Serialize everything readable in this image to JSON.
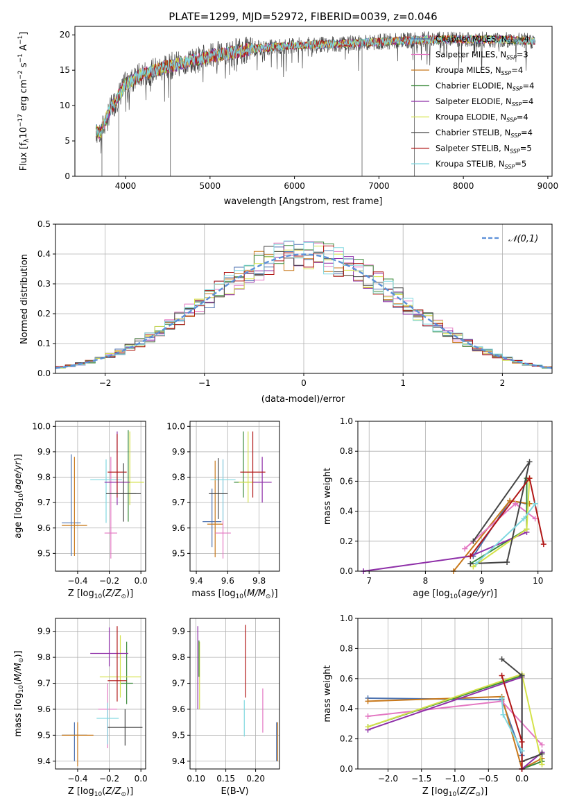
{
  "chart_data": [
    {
      "type": "line",
      "title": "PLATE=1299, MJD=52972, FIBERID=0039, z=0.046",
      "xlabel": "wavelength [Angstrom, rest frame]",
      "ylabel": "Flux [f_λ 10^-17 erg cm^-2 s^-1 A^-1]",
      "xlim": [
        3400,
        9050
      ],
      "ylim": [
        0,
        21.2
      ],
      "xticks": [
        "4000",
        "5000",
        "6000",
        "7000",
        "8000",
        "9000"
      ],
      "yticks": [
        "0",
        "5",
        "10",
        "15",
        "20"
      ],
      "grid": false,
      "legend_position": "right",
      "series": [
        {
          "name": "Chabrier MILES, N_SSP=4",
          "color": "#4c72b0"
        },
        {
          "name": "Salpeter MILES, N_SSP=3",
          "color": "#e377c2"
        },
        {
          "name": "Kroupa MILES, N_SSP=4",
          "color": "#c8781a"
        },
        {
          "name": "Chabrier ELODIE, N_SSP=4",
          "color": "#3a8a3a"
        },
        {
          "name": "Salpeter ELODIE, N_SSP=4",
          "color": "#8e2fa8"
        },
        {
          "name": "Kroupa ELODIE, N_SSP=4",
          "color": "#d4e24a"
        },
        {
          "name": "Chabrier STELIB, N_SSP=4",
          "color": "#444444"
        },
        {
          "name": "Salpeter STELIB, N_SSP=5",
          "color": "#b01515"
        },
        {
          "name": "Kroupa STELIB, N_SSP=5",
          "color": "#7fd8e0"
        }
      ],
      "continuum": {
        "x": [
          3650,
          3700,
          3800,
          3900,
          4000,
          4200,
          4500,
          5000,
          5500,
          6000,
          6500,
          7000,
          7500,
          8000,
          8500,
          8850
        ],
        "y": [
          6.5,
          6.0,
          9.0,
          11.0,
          13.0,
          14.5,
          15.5,
          17.0,
          18.0,
          18.5,
          18.7,
          19.0,
          19.3,
          19.4,
          19.3,
          19.1
        ]
      },
      "dips": [
        {
          "x": 3720,
          "y": 0
        },
        {
          "x": 3920,
          "y": 0
        },
        {
          "x": 4530,
          "y": 0
        },
        {
          "x": 6800,
          "y": 0
        },
        {
          "x": 7420,
          "y": 0
        }
      ]
    },
    {
      "type": "line",
      "xlabel": "(data-model)/error",
      "ylabel": "Normed distribution",
      "xlim": [
        -2.5,
        2.5
      ],
      "ylim": [
        0,
        0.5
      ],
      "xticks": [
        "-2",
        "-1",
        "0",
        "1",
        "2"
      ],
      "yticks": [
        "0.0",
        "0.1",
        "0.2",
        "0.3",
        "0.4",
        "0.5"
      ],
      "grid": true,
      "legend_position": "top-right",
      "reference_curve": {
        "name": "𝒩(0,1)",
        "color": "#5b8fd8",
        "mean": 0,
        "sigma": 1
      },
      "histograms": {
        "bin_width": 0.1,
        "range": [
          -2.5,
          2.5
        ],
        "profile": {
          "mean": 0,
          "sigma": 1.0
        },
        "colors": [
          "#4c72b0",
          "#e377c2",
          "#c8781a",
          "#3a8a3a",
          "#8e2fa8",
          "#d4e24a",
          "#444444",
          "#b01515",
          "#7fd8e0"
        ]
      }
    },
    {
      "type": "scatter",
      "xlabel": "Z [log10(Z/Z☉)]",
      "ylabel": "age [log10(age/yr)]",
      "xlim": [
        -0.54,
        0.03
      ],
      "ylim": [
        9.43,
        10.02
      ],
      "xticks": [
        "-0.4",
        "-0.2",
        "0.0"
      ],
      "yticks": [
        "9.5",
        "9.6",
        "9.7",
        "9.8",
        "9.9",
        "10.0"
      ],
      "grid": true,
      "error_bars": [
        {
          "x": -0.44,
          "xerr": 0.06,
          "y": 9.62,
          "yerr": [
            0.13,
            0.27
          ],
          "color": "#4c72b0"
        },
        {
          "x": -0.42,
          "xerr": 0.08,
          "y": 9.61,
          "yerr": [
            0.12,
            0.27
          ],
          "color": "#c8781a"
        },
        {
          "x": -0.19,
          "xerr": 0.04,
          "y": 9.58,
          "yerr": [
            0.1,
            0.3
          ],
          "color": "#e377c2"
        },
        {
          "x": -0.22,
          "xerr": 0.1,
          "y": 9.79,
          "yerr": [
            0.17,
            0.08
          ],
          "color": "#7fd8e0"
        },
        {
          "x": -0.08,
          "xerr": 0.05,
          "y": 9.735,
          "yerr": [
            0.11,
            0.25
          ],
          "color": "#3a8a3a"
        },
        {
          "x": -0.07,
          "xerr": 0.09,
          "y": 9.78,
          "yerr": [
            0.09,
            0.2
          ],
          "color": "#d4e24a"
        },
        {
          "x": -0.15,
          "xerr": 0.08,
          "y": 9.78,
          "yerr": [
            0.09,
            0.2
          ],
          "color": "#8e2fa8"
        },
        {
          "x": -0.15,
          "xerr": 0.06,
          "y": 9.82,
          "yerr": [
            0.1,
            0.15
          ],
          "color": "#b01515"
        },
        {
          "x": -0.11,
          "xerr": 0.11,
          "y": 9.735,
          "yerr": [
            0.11,
            0.12
          ],
          "color": "#444444"
        }
      ]
    },
    {
      "type": "scatter",
      "xlabel": "mass [log10(M/M☉)]",
      "ylabel": "",
      "xlim": [
        9.36,
        9.93
      ],
      "ylim": [
        9.43,
        10.02
      ],
      "xticks": [
        "9.4",
        "9.6",
        "9.8"
      ],
      "yticks": [
        "9.5",
        "9.6",
        "9.7",
        "9.8",
        "9.9",
        "10.0"
      ],
      "grid": true,
      "error_bars": [
        {
          "x": 9.5,
          "xerr": 0.06,
          "y": 9.625,
          "yerr": [
            0.1,
            0.13
          ],
          "color": "#4c72b0"
        },
        {
          "x": 9.52,
          "xerr": 0.05,
          "y": 9.615,
          "yerr": [
            0.13,
            0.25
          ],
          "color": "#c8781a"
        },
        {
          "x": 9.57,
          "xerr": 0.05,
          "y": 9.58,
          "yerr": [
            0.1,
            0.29
          ],
          "color": "#e377c2"
        },
        {
          "x": 9.57,
          "xerr": 0.08,
          "y": 9.79,
          "yerr": [
            0.16,
            0.08
          ],
          "color": "#7fd8e0"
        },
        {
          "x": 9.7,
          "xerr": 0.06,
          "y": 9.78,
          "yerr": [
            0.06,
            0.2
          ],
          "color": "#3a8a3a"
        },
        {
          "x": 9.73,
          "xerr": 0.06,
          "y": 9.78,
          "yerr": [
            0.08,
            0.2
          ],
          "color": "#d4e24a"
        },
        {
          "x": 9.82,
          "xerr": 0.06,
          "y": 9.78,
          "yerr": [
            0.08,
            0.1
          ],
          "color": "#8e2fa8"
        },
        {
          "x": 9.76,
          "xerr": 0.08,
          "y": 9.82,
          "yerr": [
            0.1,
            0.16
          ],
          "color": "#b01515"
        },
        {
          "x": 9.54,
          "xerr": 0.06,
          "y": 9.735,
          "yerr": [
            0.1,
            0.14
          ],
          "color": "#444444"
        }
      ]
    },
    {
      "type": "line",
      "xlabel": "age [log10(age/yr)]",
      "ylabel": "mass weight",
      "xlim": [
        6.8,
        10.25
      ],
      "ylim": [
        0,
        1.0
      ],
      "xticks": [
        "7",
        "8",
        "9",
        "10"
      ],
      "yticks": [
        "0.0",
        "0.2",
        "0.4",
        "0.6",
        "0.8",
        "1.0"
      ],
      "grid": true,
      "series": [
        {
          "color": "#4c72b0",
          "x": [
            8.85,
            9.5,
            9.8
          ],
          "y": [
            0.1,
            0.47,
            0.45
          ]
        },
        {
          "color": "#c8781a",
          "x": [
            8.5,
            9.5,
            9.85
          ],
          "y": [
            0.0,
            0.47,
            0.45
          ]
        },
        {
          "color": "#e377c2",
          "x": [
            8.7,
            9.6,
            9.95
          ],
          "y": [
            0.15,
            0.45,
            0.35
          ]
        },
        {
          "color": "#3a8a3a",
          "x": [
            8.8,
            9.8,
            9.8
          ],
          "y": [
            0.05,
            0.28,
            0.62
          ]
        },
        {
          "color": "#8e2fa8",
          "x": [
            6.9,
            8.8,
            9.8
          ],
          "y": [
            0.0,
            0.1,
            0.26
          ]
        },
        {
          "color": "#d4e24a",
          "x": [
            8.85,
            9.8,
            9.85
          ],
          "y": [
            0.03,
            0.28,
            0.62
          ]
        },
        {
          "color": "#444444",
          "x": [
            8.8,
            9.45,
            9.85,
            8.85
          ],
          "y": [
            0.05,
            0.06,
            0.73,
            0.2
          ]
        },
        {
          "color": "#b01515",
          "x": [
            8.8,
            9.85,
            10.1
          ],
          "y": [
            0.1,
            0.62,
            0.18
          ]
        },
        {
          "color": "#7fd8e0",
          "x": [
            8.9,
            9.75,
            9.95
          ],
          "y": [
            0.05,
            0.35,
            0.45
          ]
        }
      ]
    },
    {
      "type": "scatter",
      "xlabel": "Z [log10(Z/Z☉)]",
      "ylabel": "mass [log10(M/M☉)]",
      "xlim": [
        -0.54,
        0.03
      ],
      "ylim": [
        9.37,
        9.95
      ],
      "xticks": [
        "-0.4",
        "-0.2",
        "0.0"
      ],
      "yticks": [
        "9.4",
        "9.5",
        "9.6",
        "9.7",
        "9.8",
        "9.9"
      ],
      "grid": true,
      "error_bars": [
        {
          "x": -0.42,
          "xerr": 0.08,
          "y": 9.5,
          "yerr": [
            0.1,
            0.05
          ],
          "color": "#4c72b0"
        },
        {
          "x": -0.4,
          "xerr": 0.1,
          "y": 9.5,
          "yerr": [
            0.12,
            0.05
          ],
          "color": "#c8781a"
        },
        {
          "x": -0.21,
          "xerr": 0.06,
          "y": 9.6,
          "yerr": [
            0.15,
            0.1
          ],
          "color": "#e377c2"
        },
        {
          "x": -0.21,
          "xerr": 0.07,
          "y": 9.565,
          "yerr": [
            0.1,
            0.06
          ],
          "color": "#7fd8e0"
        },
        {
          "x": -0.09,
          "xerr": 0.04,
          "y": 9.7,
          "yerr": [
            0.08,
            0.16
          ],
          "color": "#3a8a3a"
        },
        {
          "x": -0.13,
          "xerr": 0.13,
          "y": 9.725,
          "yerr": [
            0.08,
            0.16
          ],
          "color": "#d4e24a"
        },
        {
          "x": -0.2,
          "xerr": 0.12,
          "y": 9.815,
          "yerr": [
            0.05,
            0.1
          ],
          "color": "#8e2fa8"
        },
        {
          "x": -0.15,
          "xerr": 0.06,
          "y": 9.71,
          "yerr": [
            0.08,
            0.21
          ],
          "color": "#b01515"
        },
        {
          "x": -0.1,
          "xerr": 0.11,
          "y": 9.53,
          "yerr": [
            0.07,
            0.07
          ],
          "color": "#444444"
        }
      ]
    },
    {
      "type": "scatter",
      "xlabel": "E(B-V)",
      "ylabel": "",
      "xlim": [
        0.09,
        0.24
      ],
      "ylim": [
        9.37,
        9.95
      ],
      "xticks": [
        "0.10",
        "0.15",
        "0.20"
      ],
      "yticks": [
        "9.4",
        "9.5",
        "9.6",
        "9.7",
        "9.8",
        "9.9"
      ],
      "grid": true,
      "error_bars": [
        {
          "x": 0.235,
          "y": 9.45,
          "yerr": [
            0.05,
            0.1
          ],
          "color": "#4c72b0"
        },
        {
          "x": 0.237,
          "y": 9.45,
          "yerr": [
            0.05,
            0.1
          ],
          "color": "#c8781a"
        },
        {
          "x": 0.212,
          "y": 9.6,
          "yerr": [
            0.09,
            0.08
          ],
          "color": "#e377c2"
        },
        {
          "x": 0.181,
          "y": 9.565,
          "yerr": [
            0.07,
            0.07
          ],
          "color": "#7fd8e0"
        },
        {
          "x": 0.103,
          "y": 9.7,
          "yerr": [
            0.1,
            0.22
          ],
          "color": "#8e2fa8"
        },
        {
          "x": 0.106,
          "y": 9.7,
          "yerr": [
            0.1,
            0.16
          ],
          "color": "#d4e24a"
        },
        {
          "x": 0.183,
          "y": 9.715,
          "yerr": [
            0.07,
            0.21
          ],
          "color": "#b01515"
        },
        {
          "x": 0.105,
          "y": 9.795,
          "yerr": [
            0.07,
            0.07
          ],
          "color": "#3a8a3a"
        }
      ]
    },
    {
      "type": "line",
      "xlabel": "Z [log10(Z/Z☉)]",
      "ylabel": "mass weight",
      "xlim": [
        -2.45,
        0.45
      ],
      "ylim": [
        0,
        1.0
      ],
      "xticks": [
        "-2.0",
        "-1.5",
        "-1.0",
        "-0.5",
        "0.0"
      ],
      "yticks": [
        "0.0",
        "0.2",
        "0.4",
        "0.6",
        "0.8",
        "1.0"
      ],
      "grid": true,
      "series": [
        {
          "color": "#4c72b0",
          "x": [
            -2.3,
            -0.3,
            0.0
          ],
          "y": [
            0.47,
            0.46,
            0.09
          ]
        },
        {
          "color": "#c8781a",
          "x": [
            -2.3,
            -0.3,
            0.0,
            0.3
          ],
          "y": [
            0.45,
            0.48,
            0.0,
            0.07
          ]
        },
        {
          "color": "#e377c2",
          "x": [
            -2.3,
            -0.3,
            0.3
          ],
          "y": [
            0.35,
            0.45,
            0.16
          ]
        },
        {
          "color": "#3a8a3a",
          "x": [
            -2.3,
            0.0,
            0.0,
            0.3
          ],
          "y": [
            0.28,
            0.62,
            0.0,
            0.05
          ]
        },
        {
          "color": "#8e2fa8",
          "x": [
            -2.3,
            0.0,
            0.0,
            0.3
          ],
          "y": [
            0.26,
            0.61,
            0.0,
            0.11
          ]
        },
        {
          "color": "#d4e24a",
          "x": [
            -2.3,
            0.0,
            0.3
          ],
          "y": [
            0.28,
            0.63,
            0.03
          ]
        },
        {
          "color": "#444444",
          "x": [
            -0.3,
            0.0,
            0.0,
            0.3
          ],
          "y": [
            0.73,
            0.62,
            0.05,
            0.1
          ]
        },
        {
          "color": "#b01515",
          "x": [
            -0.3,
            0.0,
            0.0
          ],
          "y": [
            0.62,
            0.18,
            0.0
          ]
        },
        {
          "color": "#7fd8e0",
          "x": [
            -0.3,
            -0.28,
            0.0
          ],
          "y": [
            0.47,
            0.36,
            0.12
          ]
        }
      ]
    }
  ]
}
